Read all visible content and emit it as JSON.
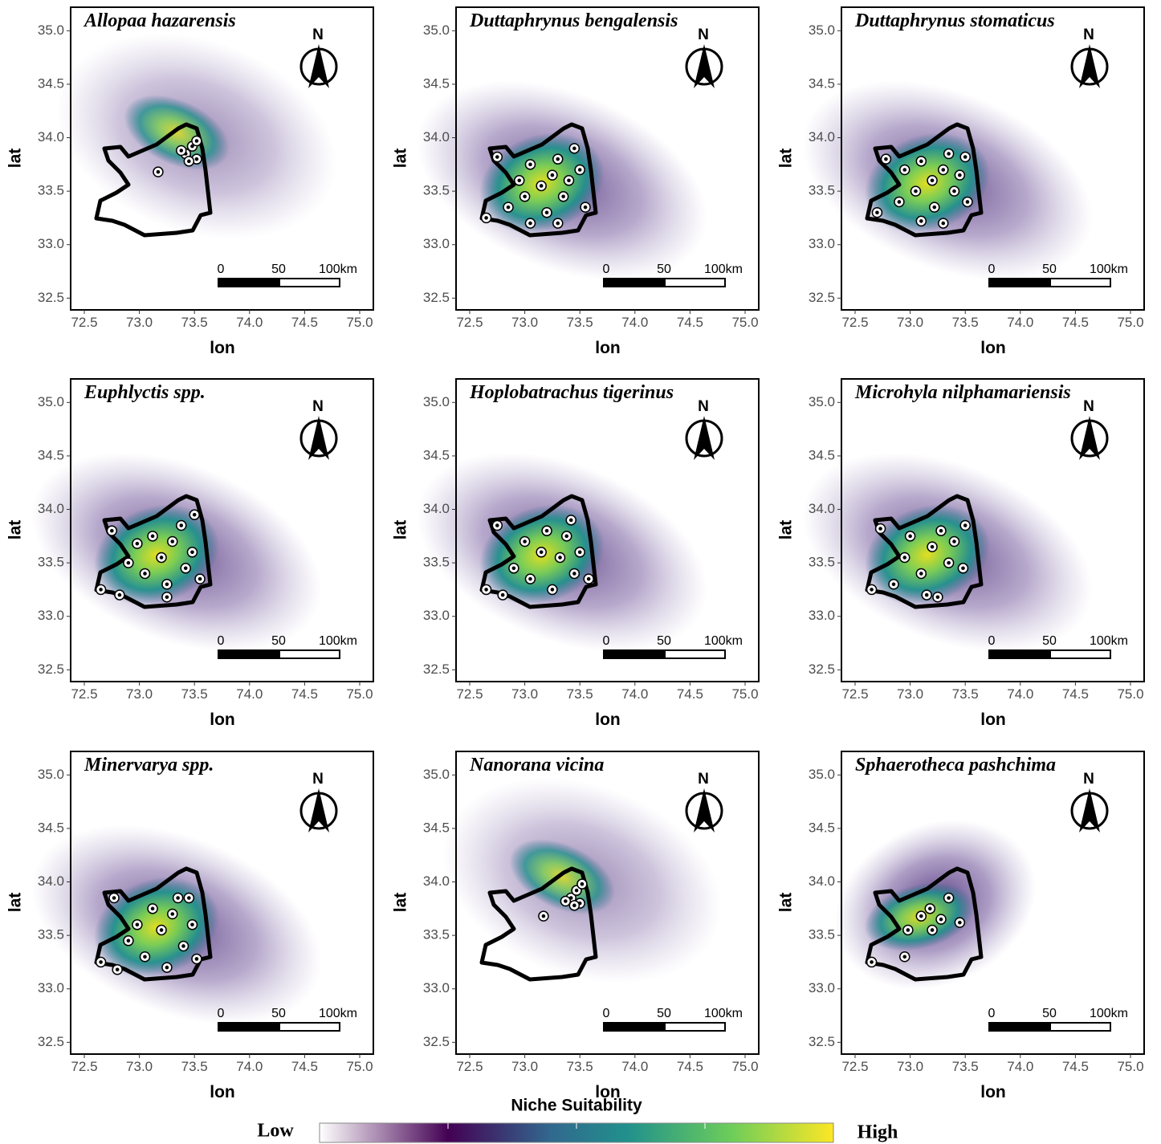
{
  "axes": {
    "xlabel": "lon",
    "ylabel": "lat",
    "xlim": [
      72.376,
      75.124
    ],
    "ylim": [
      32.39,
      35.22
    ],
    "xticks": [
      72.5,
      {
        "value": 73,
        "label": "73.0"
      },
      73.5,
      {
        "value": 74,
        "label": "74.0"
      },
      74.5,
      {
        "value": 75,
        "label": "75.0"
      }
    ],
    "yticks": [
      32.5,
      {
        "value": 33,
        "label": "33.0"
      },
      33.5,
      {
        "value": 34,
        "label": "34.0"
      },
      34.5,
      {
        "value": 35,
        "label": "35.0"
      }
    ]
  },
  "scale_bar": {
    "labels": [
      "0",
      "50",
      "100km"
    ]
  },
  "north_label": "N",
  "panels": [
    {
      "title": "Allopaa hazarensis",
      "occurrences": [
        [
          73.42,
          33.85
        ],
        [
          73.48,
          33.92
        ],
        [
          73.52,
          33.8
        ],
        [
          73.45,
          33.78
        ],
        [
          73.38,
          33.88
        ],
        [
          73.52,
          33.97
        ],
        [
          73.17,
          33.68
        ]
      ]
    },
    {
      "title": "Duttaphrynus bengalensis",
      "occurrences": [
        [
          72.65,
          33.25
        ],
        [
          72.75,
          33.82
        ],
        [
          72.85,
          33.35
        ],
        [
          72.95,
          33.6
        ],
        [
          73.0,
          33.45
        ],
        [
          73.05,
          33.75
        ],
        [
          73.15,
          33.55
        ],
        [
          73.2,
          33.3
        ],
        [
          73.25,
          33.65
        ],
        [
          73.3,
          33.8
        ],
        [
          73.35,
          33.45
        ],
        [
          73.4,
          33.6
        ],
        [
          73.45,
          33.9
        ],
        [
          73.5,
          33.7
        ],
        [
          73.3,
          33.2
        ],
        [
          73.05,
          33.2
        ],
        [
          73.55,
          33.35
        ]
      ]
    },
    {
      "title": "Duttaphrynus stomaticus",
      "occurrences": [
        [
          72.7,
          33.3
        ],
        [
          72.78,
          33.8
        ],
        [
          72.9,
          33.4
        ],
        [
          72.95,
          33.7
        ],
        [
          73.05,
          33.5
        ],
        [
          73.1,
          33.78
        ],
        [
          73.2,
          33.6
        ],
        [
          73.22,
          33.35
        ],
        [
          73.3,
          33.7
        ],
        [
          73.35,
          33.85
        ],
        [
          73.4,
          33.5
        ],
        [
          73.45,
          33.65
        ],
        [
          73.5,
          33.82
        ],
        [
          73.52,
          33.4
        ],
        [
          73.3,
          33.2
        ],
        [
          73.1,
          33.22
        ]
      ]
    },
    {
      "title": "Euphlyctis spp.",
      "occurrences": [
        [
          72.65,
          33.25
        ],
        [
          72.75,
          33.8
        ],
        [
          72.82,
          33.2
        ],
        [
          72.9,
          33.5
        ],
        [
          72.98,
          33.68
        ],
        [
          73.05,
          33.4
        ],
        [
          73.12,
          33.75
        ],
        [
          73.2,
          33.55
        ],
        [
          73.25,
          33.3
        ],
        [
          73.3,
          33.7
        ],
        [
          73.38,
          33.85
        ],
        [
          73.42,
          33.45
        ],
        [
          73.48,
          33.6
        ],
        [
          73.5,
          33.95
        ],
        [
          73.25,
          33.18
        ],
        [
          73.55,
          33.35
        ]
      ]
    },
    {
      "title": "Hoplobatrachus tigerinus",
      "occurrences": [
        [
          72.65,
          33.25
        ],
        [
          72.75,
          33.85
        ],
        [
          72.8,
          33.2
        ],
        [
          72.9,
          33.45
        ],
        [
          73.0,
          33.7
        ],
        [
          73.05,
          33.35
        ],
        [
          73.15,
          33.6
        ],
        [
          73.2,
          33.8
        ],
        [
          73.25,
          33.25
        ],
        [
          73.32,
          33.55
        ],
        [
          73.38,
          33.75
        ],
        [
          73.45,
          33.4
        ],
        [
          73.5,
          33.6
        ],
        [
          73.42,
          33.9
        ],
        [
          73.58,
          33.35
        ]
      ]
    },
    {
      "title": "Microhyla nilphamariensis",
      "occurrences": [
        [
          72.65,
          33.25
        ],
        [
          72.73,
          33.82
        ],
        [
          72.85,
          33.3
        ],
        [
          72.95,
          33.55
        ],
        [
          73.0,
          33.75
        ],
        [
          73.1,
          33.4
        ],
        [
          73.15,
          33.2
        ],
        [
          73.2,
          33.65
        ],
        [
          73.28,
          33.8
        ],
        [
          73.35,
          33.5
        ],
        [
          73.4,
          33.7
        ],
        [
          73.48,
          33.45
        ],
        [
          73.5,
          33.85
        ],
        [
          73.25,
          33.18
        ]
      ]
    },
    {
      "title": "Minervarya spp.",
      "occurrences": [
        [
          72.65,
          33.25
        ],
        [
          72.77,
          33.85
        ],
        [
          72.8,
          33.18
        ],
        [
          72.9,
          33.45
        ],
        [
          72.98,
          33.6
        ],
        [
          73.05,
          33.3
        ],
        [
          73.12,
          33.75
        ],
        [
          73.2,
          33.55
        ],
        [
          73.25,
          33.2
        ],
        [
          73.3,
          33.7
        ],
        [
          73.35,
          33.85
        ],
        [
          73.4,
          33.4
        ],
        [
          73.48,
          33.6
        ],
        [
          73.52,
          33.28
        ],
        [
          73.45,
          33.85
        ]
      ]
    },
    {
      "title": "Nanorana vicina",
      "occurrences": [
        [
          73.42,
          33.85
        ],
        [
          73.47,
          33.92
        ],
        [
          73.5,
          33.8
        ],
        [
          73.45,
          33.78
        ],
        [
          73.37,
          33.82
        ],
        [
          73.52,
          33.98
        ],
        [
          73.17,
          33.68
        ]
      ]
    },
    {
      "title": "Sphaerotheca pashchima",
      "occurrences": [
        [
          72.65,
          33.25
        ],
        [
          72.95,
          33.3
        ],
        [
          72.98,
          33.55
        ],
        [
          73.1,
          33.68
        ],
        [
          73.18,
          33.75
        ],
        [
          73.28,
          33.65
        ],
        [
          73.35,
          33.85
        ],
        [
          73.45,
          33.62
        ],
        [
          73.2,
          33.55
        ]
      ]
    }
  ],
  "legend": {
    "title": "Niche Suitability",
    "low": "Low",
    "high": "High"
  }
}
